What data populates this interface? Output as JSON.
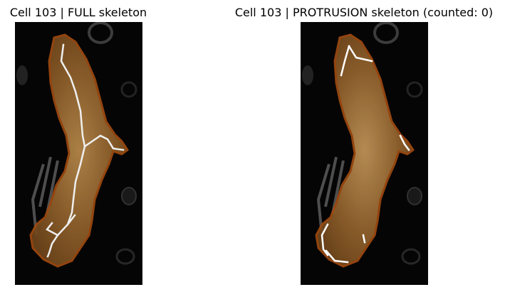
{
  "panels": [
    {
      "title": "Cell 103 | FULL skeleton"
    },
    {
      "title": "Cell 103 | PROTRUSION skeleton (counted: 0)"
    }
  ],
  "colors": {
    "background": "#ffffff",
    "image_background": "#050505",
    "cell_fill": "#8a5a24",
    "cell_outline": "#9c4a12",
    "skeleton": "#f2f2f2"
  }
}
